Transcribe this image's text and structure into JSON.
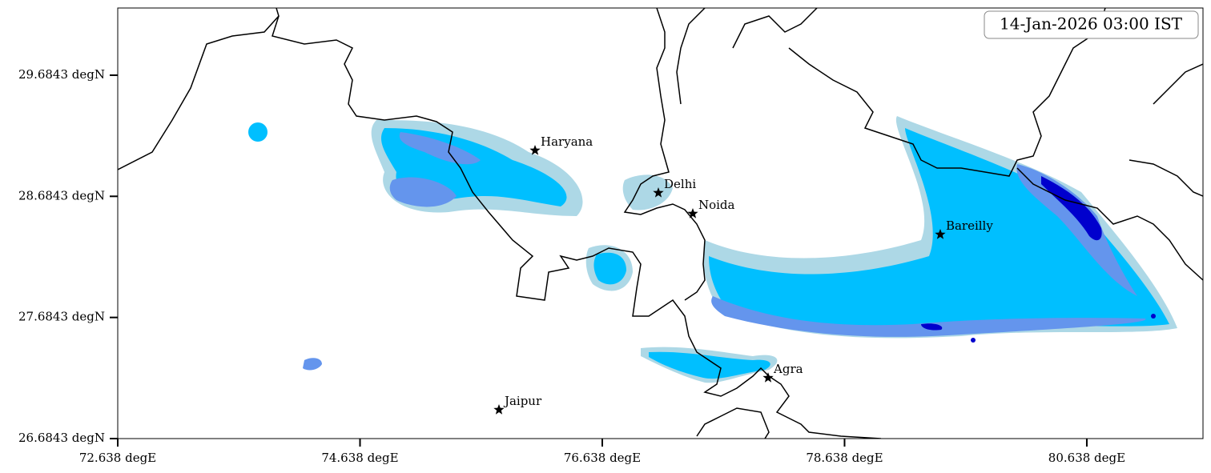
{
  "map": {
    "timestamp": "14-Jan-2026 03:00 IST",
    "xlim": [
      72.638,
      81.597
    ],
    "ylim": [
      26.6843,
      30.239
    ],
    "xticks": [
      {
        "value": 72.638,
        "label": "72.638 degE"
      },
      {
        "value": 74.638,
        "label": "74.638 degE"
      },
      {
        "value": 76.638,
        "label": "76.638 degE"
      },
      {
        "value": 78.638,
        "label": "78.638 degE"
      },
      {
        "value": 80.638,
        "label": "80.638 degE"
      }
    ],
    "yticks": [
      {
        "value": 26.6843,
        "label": "26.6843 degN"
      },
      {
        "value": 27.6843,
        "label": "27.6843 degN"
      },
      {
        "value": 28.6843,
        "label": "28.6843 degN"
      },
      {
        "value": 29.6843,
        "label": "29.6843 degN"
      }
    ],
    "places": [
      {
        "name": "Haryana",
        "lon": 76.083,
        "lat": 29.063
      },
      {
        "name": "Delhi",
        "lon": 77.101,
        "lat": 28.713
      },
      {
        "name": "Noida",
        "lon": 77.385,
        "lat": 28.541
      },
      {
        "name": "Bareilly",
        "lon": 79.428,
        "lat": 28.369
      },
      {
        "name": "Agra",
        "lon": 78.007,
        "lat": 27.186
      },
      {
        "name": "Jaipur",
        "lon": 75.785,
        "lat": 26.922
      }
    ]
  }
}
